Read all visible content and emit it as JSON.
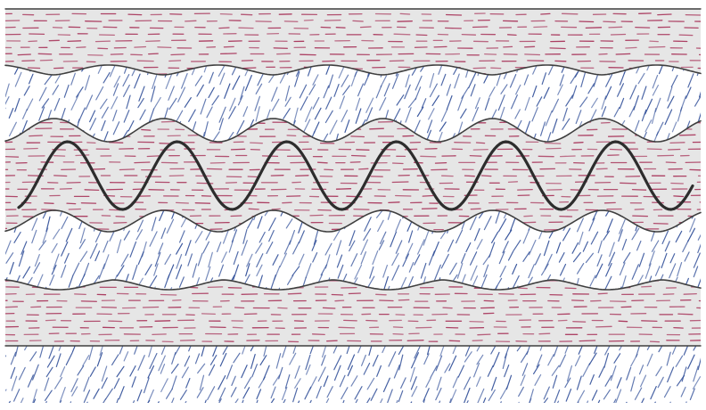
{
  "colors": {
    "paper": "#ffffff",
    "grey_fill": "#e6e6e6",
    "red_strokes": "#a8345a",
    "blue_strokes": "#33519a",
    "boundary_line": "#3f3f3f",
    "thick_fold": "#2d2d2d"
  },
  "layers": [
    {
      "name": "top-grey-layer",
      "fill": "grey",
      "stroke_pattern": "red-dashes"
    },
    {
      "name": "upper-blue-layer",
      "fill": "white",
      "stroke_pattern": "blue-slashes"
    },
    {
      "name": "central-grey-layer",
      "fill": "grey",
      "stroke_pattern": "red-dashes"
    },
    {
      "name": "lower-blue-layer",
      "fill": "white",
      "stroke_pattern": "blue-slashes"
    },
    {
      "name": "lower-grey-layer",
      "fill": "grey",
      "stroke_pattern": "red-dashes"
    },
    {
      "name": "bottom-blue-layer",
      "fill": "white",
      "stroke_pattern": "blue-slashes"
    }
  ],
  "central_fold": {
    "name": "competent-layer-fold",
    "wave_count": 6
  }
}
